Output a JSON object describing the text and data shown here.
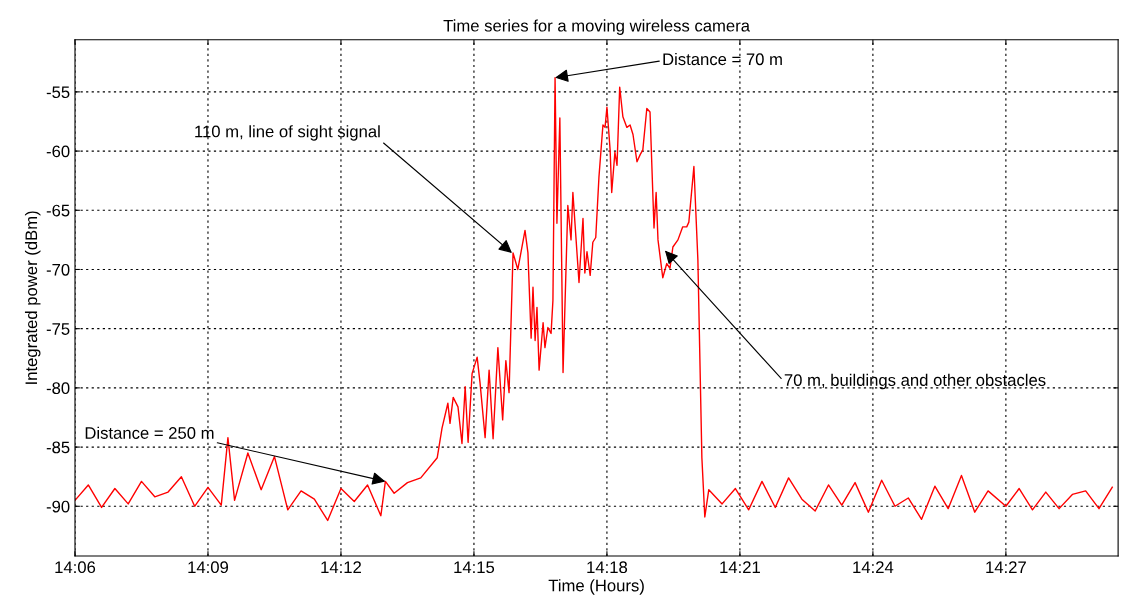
{
  "chart_data": {
    "type": "line",
    "title": "Time series for a moving wireless camera",
    "xlabel": "Time (Hours)",
    "ylabel": "Integrated power (dBm)",
    "xlim": [
      14.1,
      14.4922
    ],
    "ylim": [
      -94.2,
      -50.6
    ],
    "xticks": [
      {
        "value": 14.1,
        "label": "14:06"
      },
      {
        "value": 14.15,
        "label": "14:09"
      },
      {
        "value": 14.2,
        "label": "14:12"
      },
      {
        "value": 14.25,
        "label": "14:15"
      },
      {
        "value": 14.3,
        "label": "14:18"
      },
      {
        "value": 14.35,
        "label": "14:21"
      },
      {
        "value": 14.4,
        "label": "14:24"
      },
      {
        "value": 14.45,
        "label": "14:27"
      }
    ],
    "yticks": [
      -90,
      -85,
      -80,
      -75,
      -70,
      -65,
      -60,
      -55
    ],
    "grid": true,
    "legend": false,
    "marker": "none",
    "line_style": "solid",
    "series": [
      {
        "color": "#ff0000",
        "x": [
          14.1,
          14.105,
          14.11,
          14.115,
          14.12,
          14.125,
          14.13,
          14.135,
          14.14,
          14.145,
          14.15,
          14.155,
          14.1575,
          14.16,
          14.165,
          14.17,
          14.175,
          14.18,
          14.185,
          14.19,
          14.195,
          14.2,
          14.205,
          14.21,
          14.215,
          14.2167,
          14.22,
          14.225,
          14.23,
          14.2362,
          14.238,
          14.2402,
          14.241,
          14.2422,
          14.244,
          14.2455,
          14.2467,
          14.2478,
          14.2493,
          14.2512,
          14.2523,
          14.2542,
          14.2557,
          14.2572,
          14.259,
          14.2608,
          14.262,
          14.2632,
          14.2647,
          14.2665,
          14.2692,
          14.2703,
          14.2715,
          14.2722,
          14.273,
          14.2737,
          14.2745,
          14.276,
          14.2767,
          14.2778,
          14.279,
          14.2797,
          14.2805,
          14.2812,
          14.2823,
          14.2835,
          14.2853,
          14.2865,
          14.2872,
          14.2895,
          14.291,
          14.2917,
          14.2925,
          14.2937,
          14.2947,
          14.2958,
          14.297,
          14.2985,
          14.2993,
          14.3,
          14.3012,
          14.3018,
          14.303,
          14.3038,
          14.3048,
          14.306,
          14.3075,
          14.3087,
          14.3098,
          14.3113,
          14.3125,
          14.3135,
          14.315,
          14.3162,
          14.3177,
          14.3185,
          14.3192,
          14.321,
          14.3225,
          14.3237,
          14.3248,
          14.3267,
          14.3285,
          14.33,
          14.3308,
          14.3327,
          14.3342,
          14.3357,
          14.3368,
          14.3383,
          14.3433,
          14.3483,
          14.3533,
          14.3583,
          14.3633,
          14.3683,
          14.3733,
          14.3783,
          14.3833,
          14.3883,
          14.3933,
          14.3983,
          14.4033,
          14.4083,
          14.4133,
          14.4183,
          14.4233,
          14.4283,
          14.4333,
          14.4383,
          14.4433,
          14.45,
          14.455,
          14.46,
          14.465,
          14.47,
          14.475,
          14.48,
          14.485,
          14.49
        ],
        "values": [
          -89.5,
          -88.2,
          -90.1,
          -88.5,
          -89.8,
          -87.9,
          -89.2,
          -88.8,
          -87.5,
          -90.0,
          -88.4,
          -89.9,
          -84.2,
          -89.5,
          -85.5,
          -88.6,
          -85.8,
          -90.3,
          -88.7,
          -89.4,
          -91.2,
          -88.5,
          -89.6,
          -88.2,
          -90.8,
          -87.9,
          -88.9,
          -88.0,
          -87.6,
          -85.9,
          -83.4,
          -81.3,
          -83.0,
          -80.8,
          -81.6,
          -84.7,
          -79.9,
          -84.6,
          -78.8,
          -77.4,
          -79.6,
          -84.2,
          -78.5,
          -84.3,
          -76.6,
          -82.7,
          -77.7,
          -80.4,
          -68.6,
          -70.0,
          -66.7,
          -68.6,
          -75.8,
          -71.5,
          -76.0,
          -73.2,
          -78.5,
          -74.5,
          -76.6,
          -74.9,
          -75.4,
          -72.6,
          -53.8,
          -66.1,
          -57.2,
          -78.7,
          -64.6,
          -67.5,
          -63.5,
          -71.1,
          -65.7,
          -70.3,
          -68.5,
          -70.5,
          -67.7,
          -67.3,
          -62.2,
          -57.8,
          -58.0,
          -56.3,
          -59.9,
          -63.5,
          -60.1,
          -61.2,
          -54.6,
          -57.1,
          -58.0,
          -57.8,
          -58.6,
          -60.9,
          -60.3,
          -59.9,
          -56.4,
          -56.7,
          -66.5,
          -63.5,
          -67.5,
          -70.7,
          -69.5,
          -69.9,
          -68.1,
          -67.5,
          -66.4,
          -66.4,
          -66.0,
          -61.3,
          -69.2,
          -85.9,
          -90.9,
          -88.6,
          -89.8,
          -88.5,
          -90.3,
          -87.9,
          -90.1,
          -87.6,
          -89.4,
          -90.4,
          -88.2,
          -89.9,
          -88.0,
          -90.5,
          -87.8,
          -90.0,
          -89.3,
          -91.1,
          -88.3,
          -90.2,
          -87.4,
          -90.5,
          -88.7,
          -90.0,
          -88.5,
          -90.3,
          -88.8,
          -90.2,
          -89.0,
          -88.7,
          -90.2,
          -88.4
        ]
      }
    ],
    "annotations": [
      {
        "text": "Distance = 250 m",
        "x": 14.2167,
        "y": -87.9
      },
      {
        "text": "110 m, line of sight signal",
        "x": 14.2643,
        "y": -68.6
      },
      {
        "text": "Distance = 70 m",
        "x": 14.2805,
        "y": -53.8
      },
      {
        "text": "70 m, buildings and other obstacles",
        "x": 14.3218,
        "y": -68.4
      }
    ]
  }
}
